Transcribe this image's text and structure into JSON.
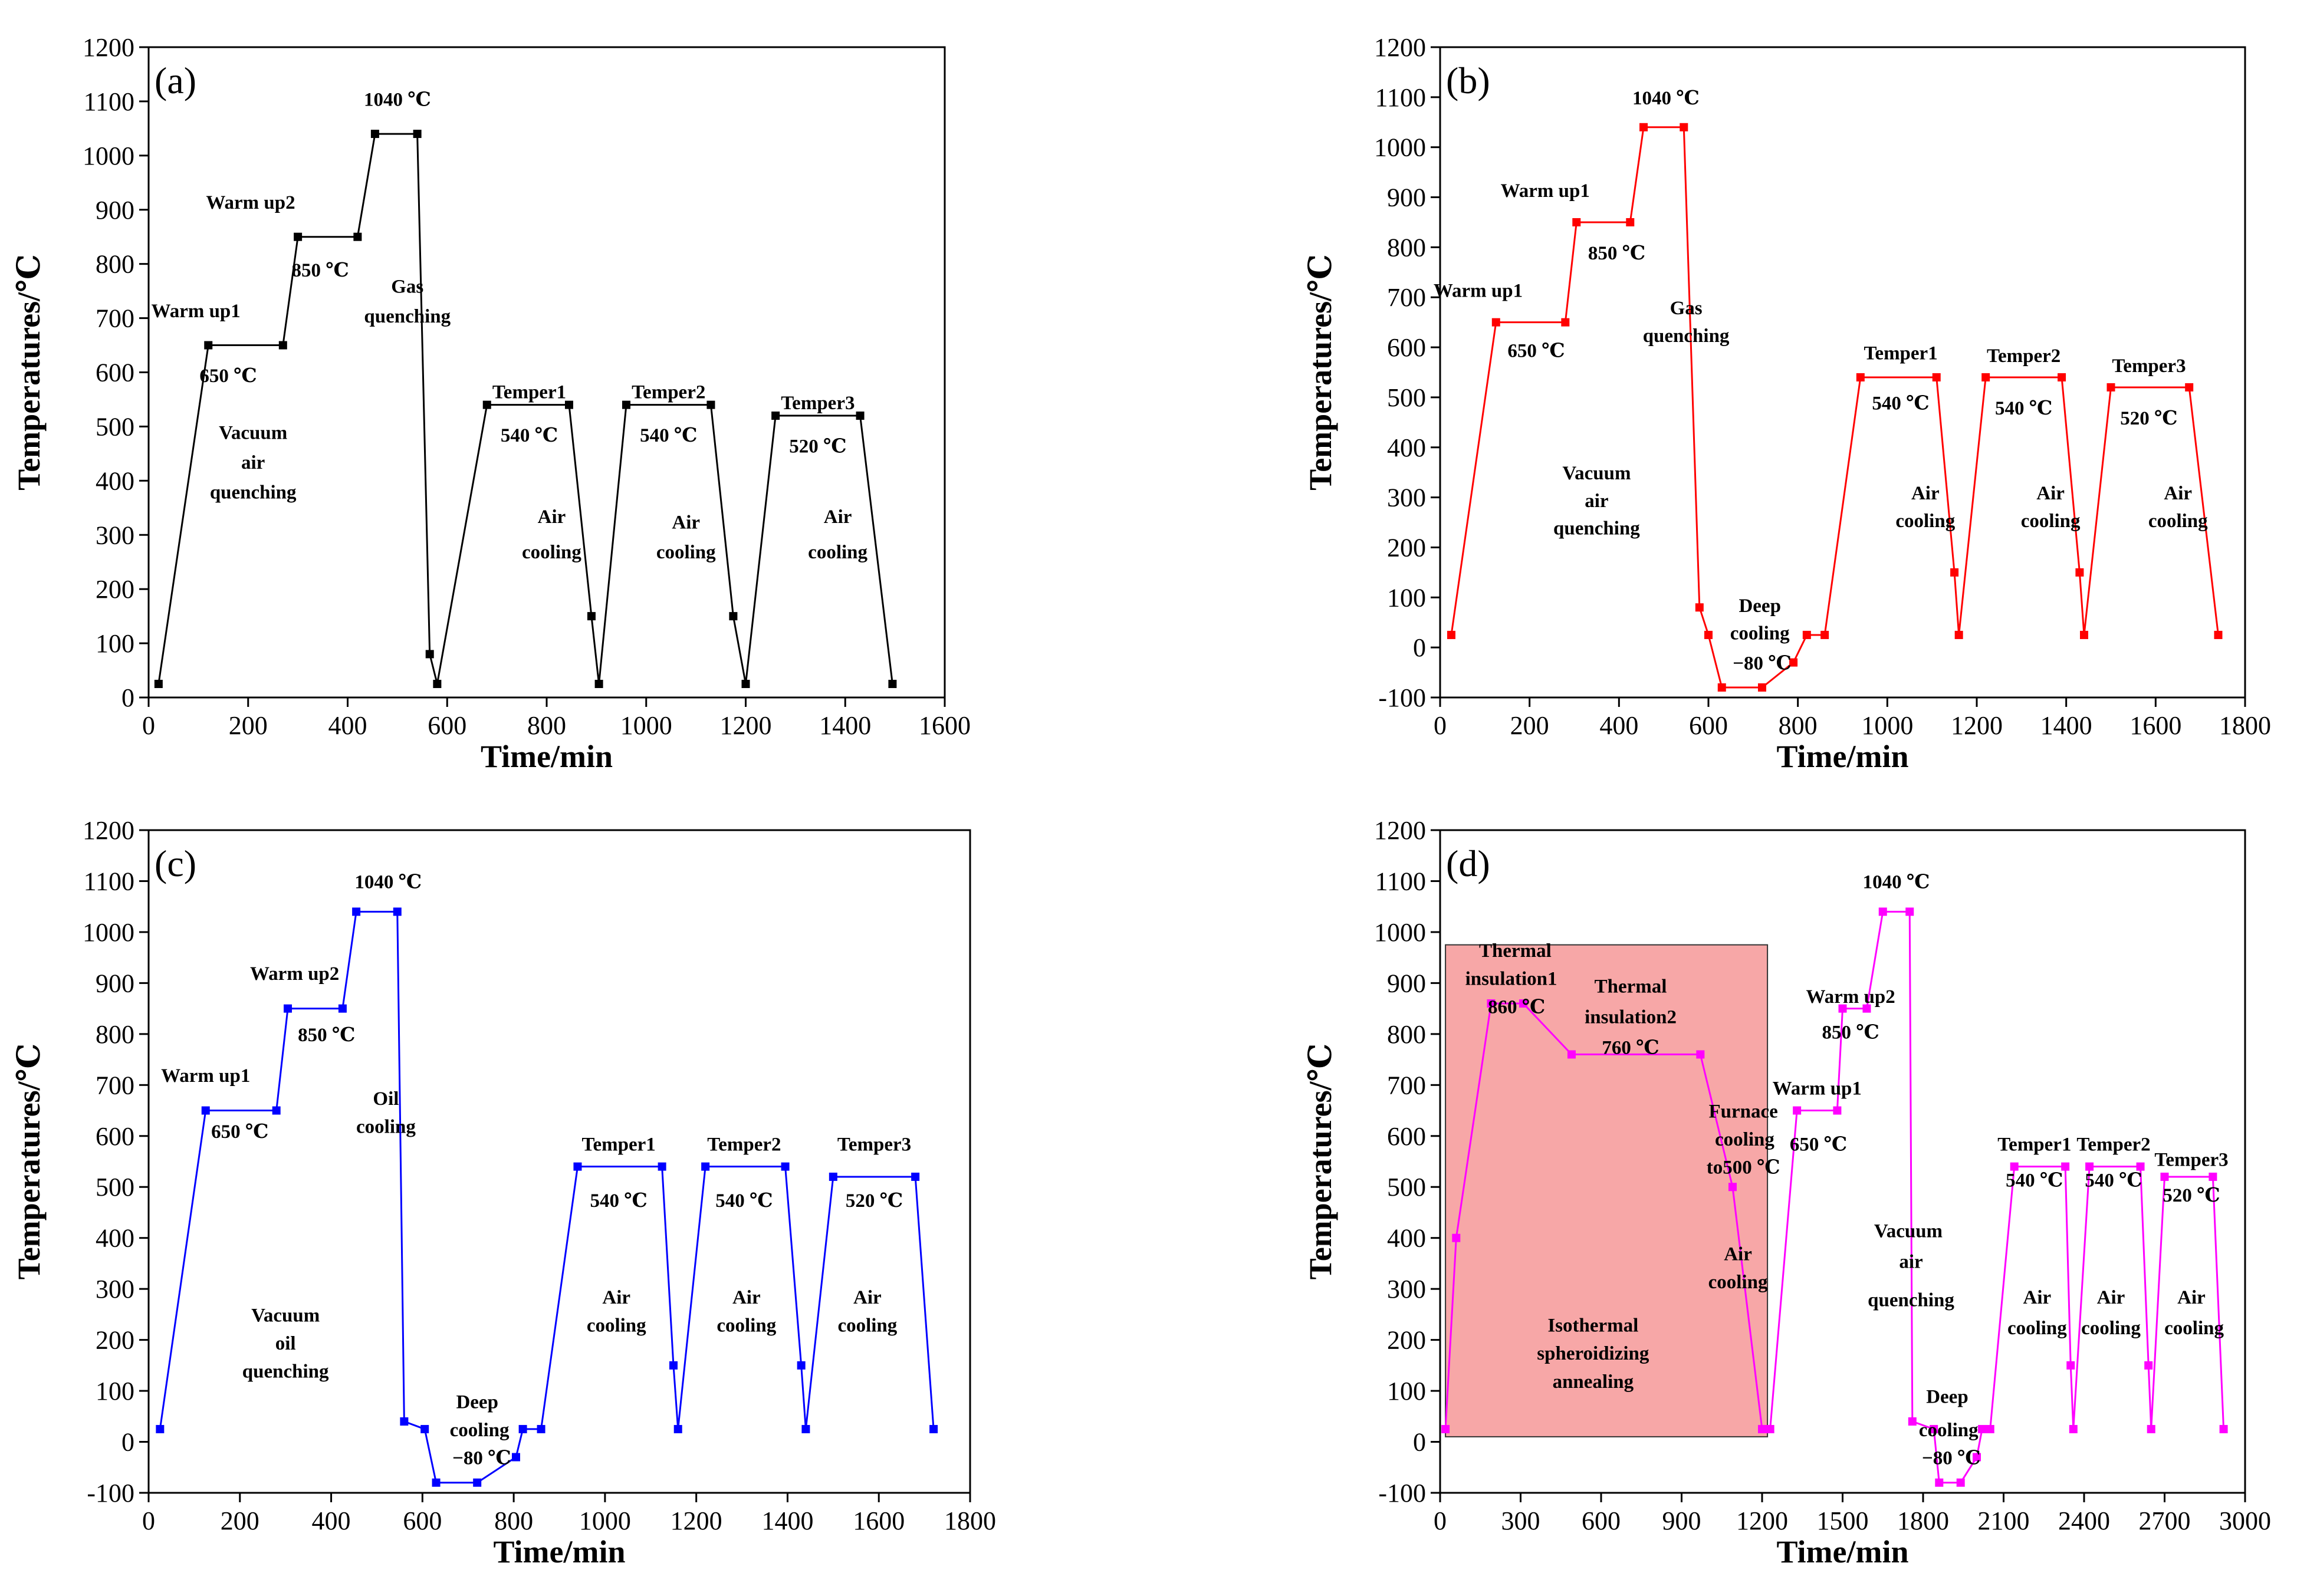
{
  "figure": {
    "panels": [
      "(a)",
      "(b)",
      "(c)",
      "(d)"
    ]
  },
  "chart_data": [
    {
      "panel": "(a)",
      "type": "line",
      "color": "#000000",
      "xlabel": "Time/min",
      "ylabel": "Temperatures/℃",
      "xlim": [
        0,
        1600
      ],
      "ylim": [
        0,
        1200
      ],
      "xticks": [
        0,
        200,
        400,
        600,
        800,
        1000,
        1200,
        1400,
        1600
      ],
      "yticks": [
        0,
        100,
        200,
        300,
        400,
        500,
        600,
        700,
        800,
        900,
        1000,
        1100,
        1200
      ],
      "series": [
        {
          "name": "process (a)",
          "x": [
            20,
            120,
            270,
            300,
            420,
            455,
            540,
            565,
            580,
            680,
            845,
            890,
            905,
            960,
            1130,
            1175,
            1200,
            1260,
            1430,
            1495
          ],
          "y": [
            25,
            650,
            650,
            850,
            850,
            1040,
            1040,
            80,
            25,
            540,
            540,
            150,
            25,
            540,
            540,
            150,
            25,
            520,
            520,
            25
          ]
        }
      ],
      "annotations": [
        {
          "text": "Warm up1",
          "x": 95,
          "y": 715
        },
        {
          "text": "650 ℃",
          "x": 160,
          "y": 595
        },
        {
          "text": "Warm up2",
          "x": 205,
          "y": 915
        },
        {
          "text": "850 ℃",
          "x": 345,
          "y": 790
        },
        {
          "text": "1040 ℃",
          "x": 500,
          "y": 1105
        },
        {
          "text": "Gas",
          "x": 520,
          "y": 760
        },
        {
          "text": "quenching",
          "x": 520,
          "y": 705
        },
        {
          "text": "Vacuum",
          "x": 210,
          "y": 490
        },
        {
          "text": "air",
          "x": 210,
          "y": 435
        },
        {
          "text": "quenching",
          "x": 210,
          "y": 380
        },
        {
          "text": "Temper1",
          "x": 765,
          "y": 565
        },
        {
          "text": "540 ℃",
          "x": 765,
          "y": 485
        },
        {
          "text": "Temper2",
          "x": 1045,
          "y": 565
        },
        {
          "text": "540 ℃",
          "x": 1045,
          "y": 485
        },
        {
          "text": "Temper3",
          "x": 1345,
          "y": 545
        },
        {
          "text": "520 ℃",
          "x": 1345,
          "y": 465
        },
        {
          "text": "Air",
          "x": 810,
          "y": 335
        },
        {
          "text": "cooling",
          "x": 810,
          "y": 270
        },
        {
          "text": "Air",
          "x": 1080,
          "y": 325
        },
        {
          "text": "cooling",
          "x": 1080,
          "y": 270
        },
        {
          "text": "Air",
          "x": 1385,
          "y": 335
        },
        {
          "text": "cooling",
          "x": 1385,
          "y": 270
        }
      ]
    },
    {
      "panel": "(b)",
      "type": "line",
      "color": "#ff0000",
      "xlabel": "Time/min",
      "ylabel": "Temperatures/℃",
      "xlim": [
        0,
        1800
      ],
      "ylim": [
        -100,
        1200
      ],
      "xticks": [
        0,
        200,
        400,
        600,
        800,
        1000,
        1200,
        1400,
        1600,
        1800
      ],
      "yticks": [
        -100,
        0,
        100,
        200,
        300,
        400,
        500,
        600,
        700,
        800,
        900,
        1000,
        1100,
        1200
      ],
      "series": [
        {
          "name": "process (b)",
          "x": [
            25,
            125,
            280,
            305,
            425,
            455,
            545,
            580,
            600,
            630,
            720,
            790,
            820,
            860,
            940,
            1110,
            1150,
            1160,
            1220,
            1390,
            1430,
            1440,
            1500,
            1675,
            1740
          ],
          "y": [
            25,
            650,
            650,
            850,
            850,
            1040,
            1040,
            80,
            25,
            -80,
            -80,
            -30,
            25,
            25,
            540,
            540,
            150,
            25,
            540,
            540,
            150,
            25,
            520,
            520,
            25
          ]
        }
      ],
      "annotations": [
        {
          "text": "Warm up1",
          "x": 85,
          "y": 715
        },
        {
          "text": "650 ℃",
          "x": 215,
          "y": 595
        },
        {
          "text": "Warm up1",
          "x": 235,
          "y": 915
        },
        {
          "text": "850 ℃",
          "x": 395,
          "y": 790
        },
        {
          "text": "1040 ℃",
          "x": 505,
          "y": 1100
        },
        {
          "text": "Gas",
          "x": 550,
          "y": 680
        },
        {
          "text": "quenching",
          "x": 550,
          "y": 625
        },
        {
          "text": "Vacuum",
          "x": 350,
          "y": 350
        },
        {
          "text": "air",
          "x": 350,
          "y": 295
        },
        {
          "text": "quenching",
          "x": 350,
          "y": 240
        },
        {
          "text": "Deep",
          "x": 715,
          "y": 85
        },
        {
          "text": "cooling",
          "x": 715,
          "y": 30
        },
        {
          "text": "−80 ℃",
          "x": 720,
          "y": -30
        },
        {
          "text": "Temper1",
          "x": 1030,
          "y": 590
        },
        {
          "text": "540 ℃",
          "x": 1030,
          "y": 490
        },
        {
          "text": "Temper2",
          "x": 1305,
          "y": 585
        },
        {
          "text": "540 ℃",
          "x": 1305,
          "y": 480
        },
        {
          "text": "Temper3",
          "x": 1585,
          "y": 565
        },
        {
          "text": "520 ℃",
          "x": 1585,
          "y": 460
        },
        {
          "text": "Air",
          "x": 1085,
          "y": 310
        },
        {
          "text": "cooling",
          "x": 1085,
          "y": 255
        },
        {
          "text": "Air",
          "x": 1365,
          "y": 310
        },
        {
          "text": "cooling",
          "x": 1365,
          "y": 255
        },
        {
          "text": "Air",
          "x": 1650,
          "y": 310
        },
        {
          "text": "cooling",
          "x": 1650,
          "y": 255
        }
      ]
    },
    {
      "panel": "(c)",
      "type": "line",
      "color": "#0000ff",
      "xlabel": "Time/min",
      "ylabel": "Temperatures/℃",
      "xlim": [
        0,
        1800
      ],
      "ylim": [
        -100,
        1200
      ],
      "xticks": [
        0,
        200,
        400,
        600,
        800,
        1000,
        1200,
        1400,
        1600,
        1800
      ],
      "yticks": [
        -100,
        0,
        100,
        200,
        300,
        400,
        500,
        600,
        700,
        800,
        900,
        1000,
        1100,
        1200
      ],
      "series": [
        {
          "name": "process (c)",
          "x": [
            25,
            125,
            280,
            305,
            425,
            455,
            545,
            560,
            605,
            630,
            720,
            805,
            820,
            860,
            940,
            1125,
            1150,
            1160,
            1220,
            1395,
            1430,
            1440,
            1500,
            1680,
            1720
          ],
          "y": [
            25,
            650,
            650,
            850,
            850,
            1040,
            1040,
            40,
            25,
            -80,
            -80,
            -30,
            25,
            25,
            540,
            540,
            150,
            25,
            540,
            540,
            150,
            25,
            520,
            520,
            25
          ]
        }
      ],
      "annotations": [
        {
          "text": "Warm up1",
          "x": 125,
          "y": 720
        },
        {
          "text": "650 ℃",
          "x": 200,
          "y": 610
        },
        {
          "text": "Warm up2",
          "x": 320,
          "y": 920
        },
        {
          "text": "850 ℃",
          "x": 390,
          "y": 800
        },
        {
          "text": "1040 ℃",
          "x": 525,
          "y": 1100
        },
        {
          "text": "Oil",
          "x": 520,
          "y": 675
        },
        {
          "text": "cooling",
          "x": 520,
          "y": 620
        },
        {
          "text": "Vacuum",
          "x": 300,
          "y": 250
        },
        {
          "text": "oil",
          "x": 300,
          "y": 195
        },
        {
          "text": "quenching",
          "x": 300,
          "y": 140
        },
        {
          "text": "Deep",
          "x": 720,
          "y": 80
        },
        {
          "text": "cooling",
          "x": 725,
          "y": 25
        },
        {
          "text": "−80 ℃",
          "x": 730,
          "y": -30
        },
        {
          "text": "Temper1",
          "x": 1030,
          "y": 585
        },
        {
          "text": "540 ℃",
          "x": 1030,
          "y": 475
        },
        {
          "text": "Temper2",
          "x": 1305,
          "y": 585
        },
        {
          "text": "540 ℃",
          "x": 1305,
          "y": 475
        },
        {
          "text": "Temper3",
          "x": 1590,
          "y": 585
        },
        {
          "text": "520 ℃",
          "x": 1590,
          "y": 475
        },
        {
          "text": "Air",
          "x": 1025,
          "y": 285
        },
        {
          "text": "cooling",
          "x": 1025,
          "y": 230
        },
        {
          "text": "Air",
          "x": 1310,
          "y": 285
        },
        {
          "text": "cooling",
          "x": 1310,
          "y": 230
        },
        {
          "text": "Air",
          "x": 1575,
          "y": 285
        },
        {
          "text": "cooling",
          "x": 1575,
          "y": 230
        }
      ]
    },
    {
      "panel": "(d)",
      "type": "line",
      "color": "#ff00ff",
      "xlabel": "Time/min",
      "ylabel": "Temperatures/℃",
      "xlim": [
        0,
        3000
      ],
      "ylim": [
        -100,
        1200
      ],
      "xticks": [
        0,
        300,
        600,
        900,
        1200,
        1500,
        1800,
        2100,
        2400,
        2700,
        3000
      ],
      "yticks": [
        -100,
        0,
        100,
        200,
        300,
        400,
        500,
        600,
        700,
        800,
        900,
        1000,
        1100,
        1200
      ],
      "highlight": {
        "x0": 20,
        "x1": 1220,
        "y0": 10,
        "y1": 975,
        "color": "#f7a7a7"
      },
      "series": [
        {
          "name": "process (d)",
          "x": [
            20,
            60,
            190,
            310,
            490,
            970,
            1090,
            1200,
            1230,
            1330,
            1480,
            1500,
            1590,
            1650,
            1750,
            1760,
            1840,
            1860,
            1940,
            2000,
            2020,
            2050,
            2140,
            2330,
            2350,
            2360,
            2420,
            2610,
            2640,
            2650,
            2700,
            2880,
            2920
          ],
          "y": [
            25,
            400,
            860,
            860,
            760,
            760,
            500,
            25,
            25,
            650,
            650,
            850,
            850,
            1040,
            1040,
            40,
            25,
            -80,
            -80,
            -30,
            25,
            25,
            540,
            540,
            150,
            25,
            540,
            540,
            150,
            25,
            520,
            520,
            25
          ]
        }
      ],
      "annotations": [
        {
          "text": "Thermal",
          "x": 280,
          "y": 965
        },
        {
          "text": "insulation1",
          "x": 265,
          "y": 910
        },
        {
          "text": "860 ℃",
          "x": 285,
          "y": 855
        },
        {
          "text": "Thermal",
          "x": 710,
          "y": 895
        },
        {
          "text": "insulation2",
          "x": 710,
          "y": 835
        },
        {
          "text": "760 ℃",
          "x": 710,
          "y": 775
        },
        {
          "text": "Furnace",
          "x": 1130,
          "y": 650
        },
        {
          "text": "cooling",
          "x": 1135,
          "y": 595
        },
        {
          "text": "to500 ℃",
          "x": 1130,
          "y": 540
        },
        {
          "text": "Air",
          "x": 1110,
          "y": 370
        },
        {
          "text": "cooling",
          "x": 1110,
          "y": 315
        },
        {
          "text": "Isothermal",
          "x": 570,
          "y": 230
        },
        {
          "text": "spheroidizing",
          "x": 570,
          "y": 175
        },
        {
          "text": "annealing",
          "x": 570,
          "y": 120
        },
        {
          "text": "Warm up1",
          "x": 1405,
          "y": 695
        },
        {
          "text": "650 ℃",
          "x": 1410,
          "y": 585
        },
        {
          "text": "Warm up2",
          "x": 1530,
          "y": 875
        },
        {
          "text": "850 ℃",
          "x": 1530,
          "y": 805
        },
        {
          "text": "1040 ℃",
          "x": 1700,
          "y": 1100
        },
        {
          "text": "Vacuum",
          "x": 1745,
          "y": 415
        },
        {
          "text": "air",
          "x": 1755,
          "y": 355
        },
        {
          "text": "quenching",
          "x": 1755,
          "y": 280
        },
        {
          "text": "Deep",
          "x": 1890,
          "y": 90
        },
        {
          "text": "cooling",
          "x": 1895,
          "y": 25
        },
        {
          "text": "−80 ℃",
          "x": 1905,
          "y": -30
        },
        {
          "text": "Temper1",
          "x": 2215,
          "y": 585
        },
        {
          "text": "540 ℃",
          "x": 2215,
          "y": 515
        },
        {
          "text": "Temper2",
          "x": 2510,
          "y": 585
        },
        {
          "text": "540 ℃",
          "x": 2510,
          "y": 515
        },
        {
          "text": "Temper3",
          "x": 2800,
          "y": 555
        },
        {
          "text": "520 ℃",
          "x": 2800,
          "y": 485
        },
        {
          "text": "Air",
          "x": 2225,
          "y": 285
        },
        {
          "text": "cooling",
          "x": 2225,
          "y": 225
        },
        {
          "text": "Air",
          "x": 2500,
          "y": 285
        },
        {
          "text": "cooling",
          "x": 2500,
          "y": 225
        },
        {
          "text": "Air",
          "x": 2800,
          "y": 285
        },
        {
          "text": "cooling",
          "x": 2810,
          "y": 225
        }
      ]
    }
  ]
}
